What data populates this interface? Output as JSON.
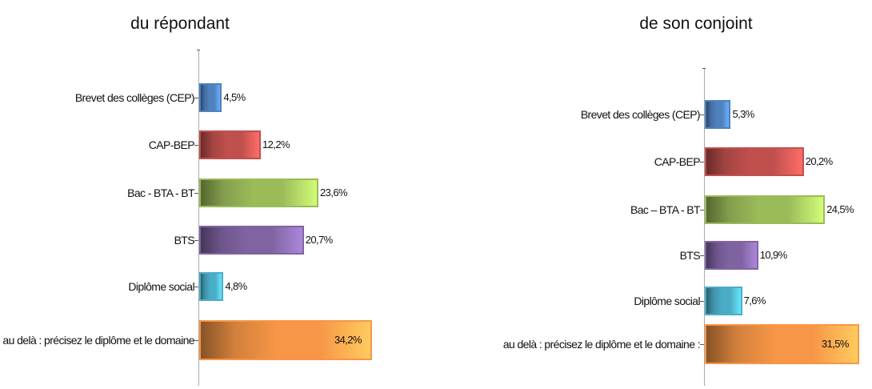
{
  "chart_data": [
    {
      "type": "bar",
      "orientation": "horizontal",
      "title": "du répondant",
      "categories": [
        "Brevet des collèges (CEP)",
        "CAP-BEP",
        "Bac - BTA - BT",
        "BTS",
        "Diplôme social",
        "au delà : précisez le diplôme et le domaine"
      ],
      "values": [
        4.5,
        12.2,
        23.6,
        20.7,
        4.8,
        34.2
      ],
      "value_labels": [
        "4,5%",
        "12,2%",
        "23,6%",
        "20,7%",
        "4,8%",
        "34,2%"
      ],
      "colors": [
        "#4f81bd",
        "#c0504d",
        "#9bbb59",
        "#8064a2",
        "#4bacc6",
        "#f79646"
      ]
    },
    {
      "type": "bar",
      "orientation": "horizontal",
      "title": "de son conjoint",
      "categories": [
        "Brevet des collèges (CEP)",
        "CAP-BEP",
        "Bac – BTA - BT",
        "BTS",
        "Diplôme social",
        "au delà : précisez le diplôme et le domaine :"
      ],
      "values": [
        5.3,
        20.2,
        24.5,
        10.9,
        7.6,
        31.5
      ],
      "value_labels": [
        "5,3%",
        "20,2%",
        "24,5%",
        "10,9%",
        "7,6%",
        "31,5%"
      ],
      "colors": [
        "#4f81bd",
        "#c0504d",
        "#9bbb59",
        "#8064a2",
        "#4bacc6",
        "#f79646"
      ]
    }
  ]
}
